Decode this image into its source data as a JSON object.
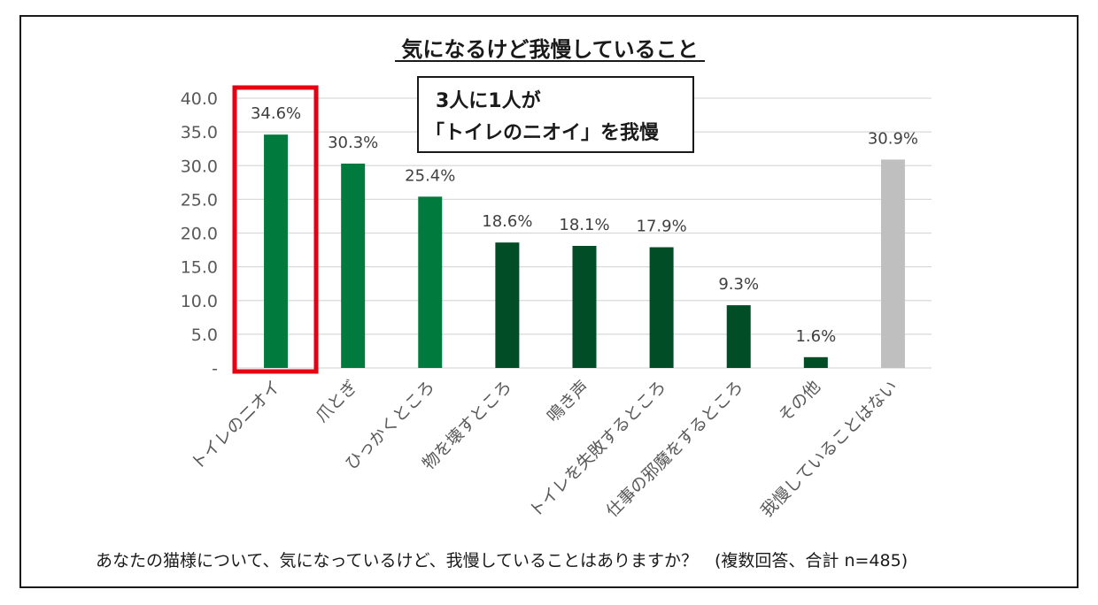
{
  "chart_data": {
    "type": "bar",
    "title": "気になるけど我慢していること",
    "categories": [
      "トイレのニオイ",
      "爪とぎ",
      "ひっかくところ",
      "物を壊すところ",
      "鳴き声",
      "トイレを失敗するところ",
      "仕事の邪魔をするところ",
      "その他",
      "我慢していることはない"
    ],
    "values": [
      34.6,
      30.3,
      25.4,
      18.6,
      18.1,
      17.9,
      9.3,
      1.6,
      30.9
    ],
    "data_labels": [
      "34.6%",
      "30.3%",
      "25.4%",
      "18.6%",
      "18.1%",
      "17.9%",
      "9.3%",
      "1.6%",
      "30.9%"
    ],
    "ylim": [
      0,
      40
    ],
    "yticks": [
      0,
      5,
      10,
      15,
      20,
      25,
      30,
      35,
      40
    ],
    "ytick_labels": [
      "-",
      "5.0",
      "10.0",
      "15.0",
      "20.0",
      "25.0",
      "30.0",
      "35.0",
      "40.0"
    ],
    "xlabel": "",
    "ylabel": "",
    "grid": true,
    "bar_colors": [
      "#007a3d",
      "#007a3d",
      "#007a3d",
      "#004d26",
      "#004d26",
      "#004d26",
      "#004d26",
      "#004d26",
      "#bfbfbf"
    ],
    "highlight_index": 0,
    "highlight_color": "#e60012",
    "gridline_color": "#d9d9d9"
  },
  "callout": {
    "line1": "3人に1人が",
    "line2": "「トイレのニオイ」を我慢"
  },
  "footnote": "あなたの猫様について、気になっているけど、我慢していることはありますか？　(複数回答、合計 n=485)"
}
